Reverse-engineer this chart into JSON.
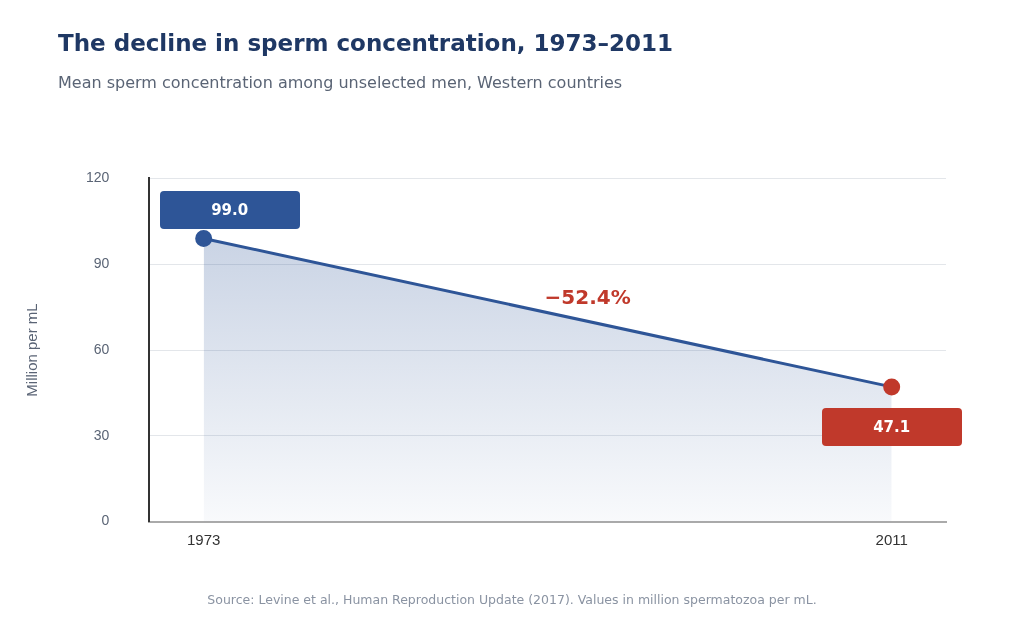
{
  "chart_data": {
    "type": "area",
    "title": "The decline in sperm concentration, 1973–2011",
    "subtitle": "Mean sperm concentration among unselected men, Western countries",
    "ylabel": "Million per mL",
    "x": [
      1973,
      2011
    ],
    "series": [
      {
        "color": "#2e5597",
        "colors": [
          "#2e5597",
          "#c0392b"
        ],
        "values": [
          99.0,
          47.1
        ],
        "value_labels": [
          "99.0",
          "47.1"
        ]
      }
    ],
    "xlim": [
      1970,
      2014
    ],
    "xticks": [
      1973,
      2011
    ],
    "ylim": [
      0,
      120
    ],
    "yticks": [
      0,
      30,
      60,
      90,
      120
    ],
    "grid": "y",
    "legend": false,
    "marker": "circle",
    "line_style": "solid",
    "annotations": [
      "−52.4%",
      "Source: Levine et al., Human Reproduction Update (2017). Values in million spermatozoa per mL."
    ]
  }
}
